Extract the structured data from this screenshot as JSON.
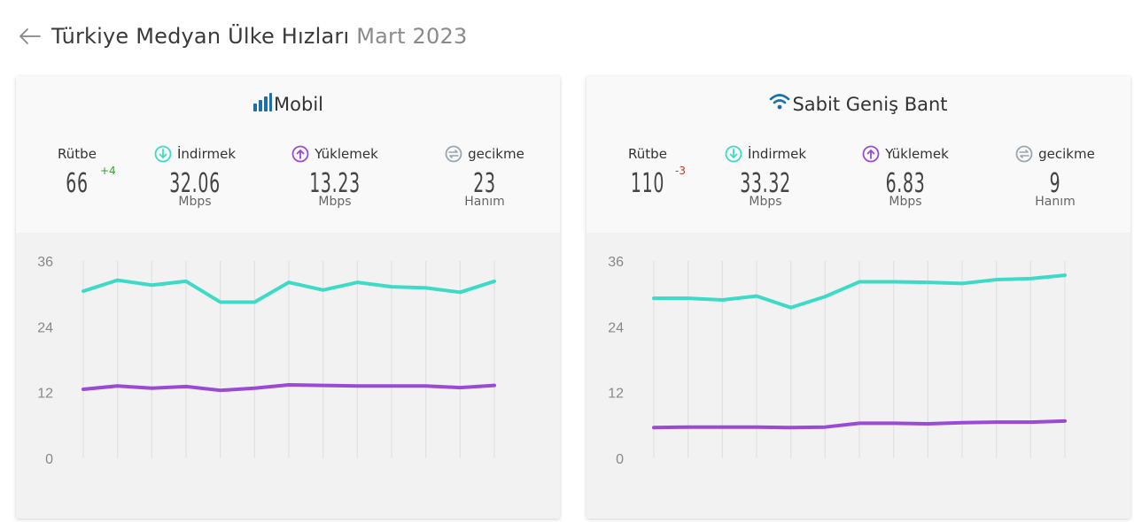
{
  "header": {
    "title": "Türkiye Medyan Ülke Hızları",
    "month": "Mart 2023"
  },
  "colors": {
    "download": "#3ddbc6",
    "upload": "#9b4ad6",
    "latency": "#9aa5ad",
    "icon_blue": "#1c6fa8"
  },
  "cards": [
    {
      "title": "Mobil",
      "icon": "signal-bars-icon",
      "rank_label": "Rütbe",
      "rank": "66",
      "rank_change": "+4",
      "download_label": "İndirmek",
      "download": "32.06",
      "download_unit": "Mbps",
      "upload_label": "Yüklemek",
      "upload": "13.23",
      "upload_unit": "Mbps",
      "latency_label": "gecikme",
      "latency": "23",
      "latency_unit": "Hanım"
    },
    {
      "title": "Sabit Geniş Bant",
      "icon": "wifi-icon",
      "rank_label": "Rütbe",
      "rank": "110",
      "rank_change": "-3",
      "download_label": "İndirmek",
      "download": "33.32",
      "download_unit": "Mbps",
      "upload_label": "Yüklemek",
      "upload": "6.83",
      "upload_unit": "Mbps",
      "latency_label": "gecikme",
      "latency": "9",
      "latency_unit": "Hanım"
    }
  ],
  "chart_data": [
    {
      "type": "line",
      "y_ticks": [
        "36",
        "24",
        "12",
        "0"
      ],
      "ylim": [
        0,
        36
      ],
      "grid": "vertical",
      "series": [
        {
          "values": [
            30.5,
            32.5,
            31.6,
            32.3,
            28.5,
            28.5,
            32.1,
            30.7,
            32.1,
            31.3,
            31.1,
            30.3,
            32.3
          ]
        },
        {
          "values": [
            12.6,
            13.2,
            12.8,
            13.1,
            12.4,
            12.8,
            13.4,
            13.3,
            13.2,
            13.2,
            13.2,
            12.9,
            13.3
          ]
        }
      ]
    },
    {
      "type": "line",
      "y_ticks": [
        "36",
        "24",
        "12",
        "0"
      ],
      "ylim": [
        0,
        36
      ],
      "grid": "vertical",
      "series": [
        {
          "values": [
            29.2,
            29.2,
            28.9,
            29.6,
            27.5,
            29.5,
            32.2,
            32.2,
            32.1,
            31.9,
            32.6,
            32.8,
            33.4
          ]
        },
        {
          "values": [
            5.6,
            5.7,
            5.7,
            5.7,
            5.6,
            5.7,
            6.4,
            6.4,
            6.3,
            6.5,
            6.6,
            6.6,
            6.8
          ]
        }
      ]
    }
  ]
}
